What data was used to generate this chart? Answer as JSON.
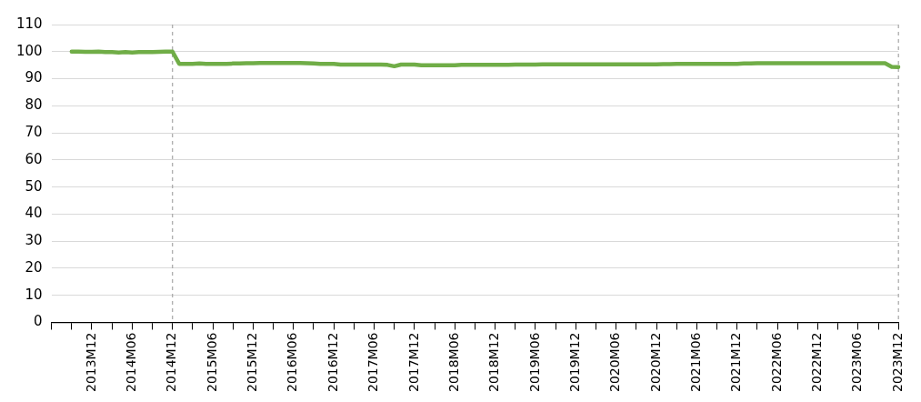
{
  "chart_data": {
    "type": "line",
    "categories": [
      null,
      null,
      null,
      null,
      null,
      null,
      "2013M12",
      null,
      null,
      null,
      null,
      null,
      "2014M06",
      null,
      null,
      null,
      null,
      null,
      "2014M12",
      null,
      null,
      null,
      null,
      null,
      "2015M06",
      null,
      null,
      null,
      null,
      null,
      "2015M12",
      null,
      null,
      null,
      null,
      null,
      "2016M06",
      null,
      null,
      null,
      null,
      null,
      "2016M12",
      null,
      null,
      null,
      null,
      null,
      "2017M06",
      null,
      null,
      null,
      null,
      null,
      "2017M12",
      null,
      null,
      null,
      null,
      null,
      "2018M06",
      null,
      null,
      null,
      null,
      null,
      "2018M12",
      null,
      null,
      null,
      null,
      null,
      "2019M06",
      null,
      null,
      null,
      null,
      null,
      "2019M12",
      null,
      null,
      null,
      null,
      null,
      "2020M06",
      null,
      null,
      null,
      null,
      null,
      "2020M12",
      null,
      null,
      null,
      null,
      null,
      "2021M06",
      null,
      null,
      null,
      null,
      null,
      "2021M12",
      null,
      null,
      null,
      null,
      null,
      "2022M06",
      null,
      null,
      null,
      null,
      null,
      "2022M12",
      null,
      null,
      null,
      null,
      null,
      "2023M06",
      null,
      null,
      null,
      null,
      null,
      "2023M12"
    ],
    "series": [
      {
        "color": "#70ad47",
        "values": [
          null,
          null,
          null,
          100,
          100,
          99.9,
          99.9,
          100,
          99.8,
          99.8,
          99.7,
          99.8,
          99.7,
          99.8,
          99.8,
          99.8,
          99.9,
          100,
          100,
          95.5,
          95.5,
          95.5,
          95.6,
          95.5,
          95.5,
          95.5,
          95.5,
          95.6,
          95.6,
          95.7,
          95.7,
          95.8,
          95.8,
          95.8,
          95.8,
          95.8,
          95.8,
          95.8,
          95.7,
          95.6,
          95.5,
          95.5,
          95.5,
          95.2,
          95.2,
          95.2,
          95.2,
          95.2,
          95.2,
          95.2,
          95.1,
          94.6,
          95.2,
          95.2,
          95.2,
          95.0,
          95.0,
          95.0,
          95.0,
          95.0,
          95.0,
          95.1,
          95.1,
          95.1,
          95.1,
          95.1,
          95.1,
          95.1,
          95.1,
          95.2,
          95.2,
          95.2,
          95.2,
          95.3,
          95.3,
          95.3,
          95.3,
          95.3,
          95.3,
          95.3,
          95.3,
          95.3,
          95.3,
          95.3,
          95.3,
          95.3,
          95.3,
          95.3,
          95.3,
          95.3,
          95.3,
          95.4,
          95.4,
          95.5,
          95.5,
          95.5,
          95.5,
          95.5,
          95.5,
          95.5,
          95.5,
          95.5,
          95.5,
          95.6,
          95.6,
          95.7,
          95.7,
          95.7,
          95.7,
          95.7,
          95.7,
          95.7,
          95.7,
          95.7,
          95.7,
          95.7,
          95.7,
          95.7,
          95.7,
          95.7,
          95.7,
          95.7,
          95.7,
          95.7,
          95.7,
          94.4,
          94.3
        ]
      }
    ],
    "ylim": [
      0,
      110
    ],
    "yticks": [
      0,
      10,
      20,
      30,
      40,
      50,
      60,
      70,
      80,
      90,
      100,
      110
    ],
    "grid": "y",
    "legend": false,
    "marker": "none",
    "line_style": "solid",
    "ref_lines": [
      {
        "axis": "x",
        "value": "2014M12",
        "color": "#a6a6a6",
        "line_style": "dashed"
      },
      {
        "axis": "x",
        "value": "2023M12",
        "color": "#a6a6a6",
        "line_style": "dashed"
      }
    ]
  }
}
